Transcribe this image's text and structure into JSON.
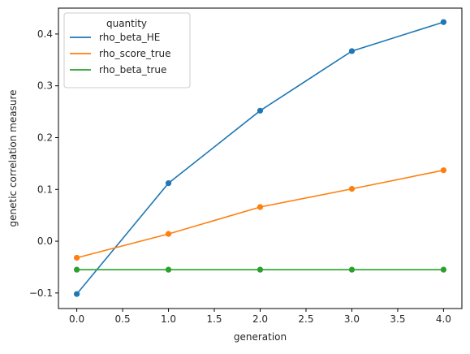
{
  "chart_data": {
    "type": "line",
    "xlabel": "generation",
    "ylabel": "genetic correlation measure",
    "xlim": [
      -0.2,
      4.2
    ],
    "ylim": [
      -0.13,
      0.45
    ],
    "xticks": [
      0.0,
      0.5,
      1.0,
      1.5,
      2.0,
      2.5,
      3.0,
      3.5,
      4.0
    ],
    "xtick_labels": [
      "0.0",
      "0.5",
      "1.0",
      "1.5",
      "2.0",
      "2.5",
      "3.0",
      "3.5",
      "4.0"
    ],
    "yticks": [
      -0.1,
      0.0,
      0.1,
      0.2,
      0.3,
      0.4
    ],
    "ytick_labels": [
      "−0.1",
      "0.0",
      "0.1",
      "0.2",
      "0.3",
      "0.4"
    ],
    "grid": false,
    "legend": {
      "title": "quantity",
      "placement": "top-left"
    },
    "x": [
      0,
      1,
      2,
      3,
      4
    ],
    "series": [
      {
        "name": "rho_beta_HE",
        "color": "#1f77b4",
        "marker": "circle",
        "values": [
          -0.102,
          0.112,
          0.252,
          0.367,
          0.423
        ]
      },
      {
        "name": "rho_score_true",
        "color": "#ff7f0e",
        "marker": "circle",
        "values": [
          -0.032,
          0.014,
          0.066,
          0.101,
          0.137
        ]
      },
      {
        "name": "rho_beta_true",
        "color": "#2ca02c",
        "marker": "circle",
        "values": [
          -0.055,
          -0.055,
          -0.055,
          -0.055,
          -0.055
        ]
      }
    ]
  }
}
